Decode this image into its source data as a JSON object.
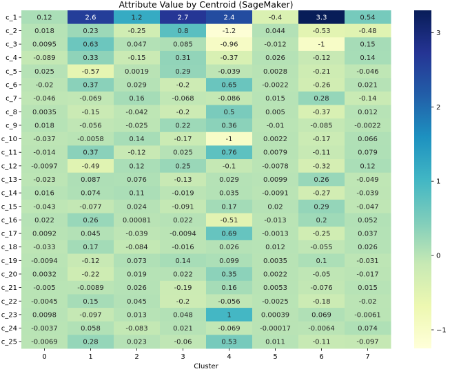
{
  "chart_data": {
    "type": "heatmap",
    "title": "Attribute Value by Centroid (SageMaker)",
    "xlabel": "Cluster",
    "ylabel": "",
    "x_categories": [
      "0",
      "1",
      "2",
      "3",
      "4",
      "5",
      "6",
      "7"
    ],
    "y_categories": [
      "c_1",
      "c_2",
      "c_3",
      "c_4",
      "c_5",
      "c_6",
      "c_7",
      "c_8",
      "c_9",
      "c_10",
      "c_11",
      "c_12",
      "c_13",
      "c_14",
      "c_15",
      "c_16",
      "c_17",
      "c_18",
      "c_19",
      "c_20",
      "c_21",
      "c_22",
      "c_23",
      "c_24",
      "c_25"
    ],
    "values": [
      [
        "0.12",
        "2.6",
        "1.2",
        "2.7",
        "2.4",
        "-0.4",
        "3.3",
        "0.54"
      ],
      [
        "0.018",
        "0.23",
        "-0.25",
        "0.8",
        "-1.2",
        "0.044",
        "-0.53",
        "-0.48"
      ],
      [
        "0.0095",
        "0.63",
        "0.047",
        "0.085",
        "-0.96",
        "-0.012",
        "-1",
        "0.15"
      ],
      [
        "-0.089",
        "0.33",
        "-0.15",
        "0.31",
        "-0.37",
        "0.026",
        "-0.12",
        "0.14"
      ],
      [
        "0.025",
        "-0.57",
        "0.0019",
        "0.29",
        "-0.039",
        "0.0028",
        "-0.21",
        "-0.046"
      ],
      [
        "-0.02",
        "0.37",
        "0.029",
        "-0.2",
        "0.65",
        "-0.0022",
        "-0.26",
        "0.021"
      ],
      [
        "-0.046",
        "-0.069",
        "0.16",
        "-0.068",
        "-0.086",
        "0.015",
        "0.28",
        "-0.14"
      ],
      [
        "0.0035",
        "-0.15",
        "-0.042",
        "-0.2",
        "0.5",
        "0.005",
        "-0.37",
        "0.012"
      ],
      [
        "0.018",
        "-0.056",
        "-0.025",
        "0.22",
        "0.36",
        "-0.01",
        "-0.085",
        "-0.0022"
      ],
      [
        "-0.037",
        "-0.0058",
        "0.14",
        "-0.17",
        "-1",
        "0.0022",
        "-0.17",
        "0.066"
      ],
      [
        "-0.014",
        "0.37",
        "-0.12",
        "0.025",
        "0.76",
        "0.0079",
        "-0.11",
        "0.079"
      ],
      [
        "-0.0097",
        "-0.49",
        "0.12",
        "0.25",
        "-0.1",
        "-0.0078",
        "-0.32",
        "0.12"
      ],
      [
        "-0.023",
        "0.087",
        "0.076",
        "-0.13",
        "0.029",
        "0.0099",
        "0.26",
        "-0.049"
      ],
      [
        "0.016",
        "0.074",
        "0.11",
        "-0.019",
        "0.035",
        "-0.0091",
        "-0.27",
        "-0.039"
      ],
      [
        "-0.043",
        "-0.077",
        "0.024",
        "-0.091",
        "0.17",
        "0.02",
        "0.29",
        "-0.047"
      ],
      [
        "0.022",
        "0.26",
        "0.00081",
        "0.022",
        "-0.51",
        "-0.013",
        "0.2",
        "0.052"
      ],
      [
        "0.0092",
        "0.045",
        "-0.039",
        "-0.0094",
        "0.69",
        "-0.0013",
        "-0.25",
        "0.037"
      ],
      [
        "-0.033",
        "0.17",
        "-0.084",
        "-0.016",
        "0.026",
        "0.012",
        "-0.055",
        "0.026"
      ],
      [
        "-0.0094",
        "-0.12",
        "0.073",
        "0.14",
        "0.099",
        "0.0035",
        "0.1",
        "-0.031"
      ],
      [
        "0.0032",
        "-0.22",
        "0.019",
        "0.022",
        "0.35",
        "0.0022",
        "-0.05",
        "-0.017"
      ],
      [
        "-0.005",
        "-0.0089",
        "0.026",
        "-0.19",
        "0.16",
        "0.0053",
        "-0.076",
        "0.015"
      ],
      [
        "-0.0045",
        "0.15",
        "0.045",
        "-0.2",
        "-0.056",
        "-0.0025",
        "-0.18",
        "-0.02"
      ],
      [
        "0.0098",
        "-0.097",
        "0.013",
        "0.048",
        "1",
        "0.00039",
        "0.069",
        "-0.0061"
      ],
      [
        "-0.0037",
        "0.058",
        "-0.083",
        "0.021",
        "-0.069",
        "-0.00017",
        "-0.0064",
        "0.074"
      ],
      [
        "-0.0069",
        "0.28",
        "0.023",
        "-0.06",
        "0.53",
        "0.011",
        "-0.11",
        "-0.097"
      ]
    ],
    "colormap": "YlGnBu",
    "color_range": [
      -1.25,
      3.3
    ],
    "colorbar_ticks": [
      "3",
      "2",
      "1",
      "0",
      "-1"
    ],
    "annotated": true,
    "grid": false,
    "legend": "colorbar-right"
  }
}
